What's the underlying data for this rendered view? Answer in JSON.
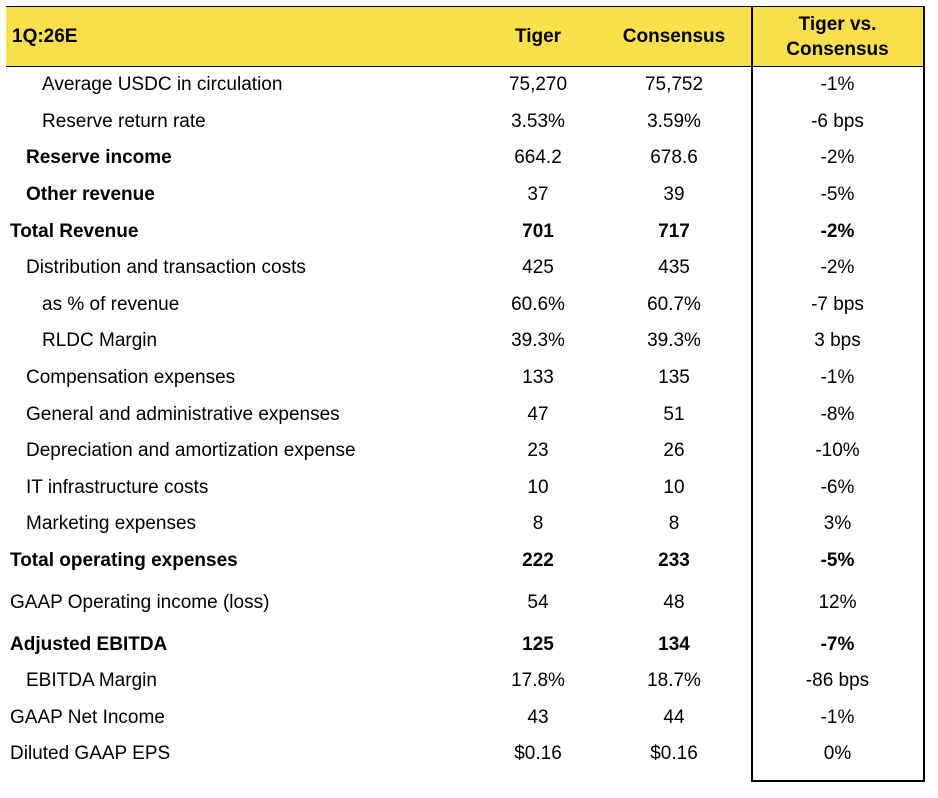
{
  "header": {
    "period": "1Q:26E",
    "col_tiger": "Tiger",
    "col_consensus": "Consensus",
    "col_diff_line1": "Tiger vs.",
    "col_diff_line2": "Consensus"
  },
  "rows": [
    {
      "label": "Average USDC in circulation",
      "tiger": "75,270",
      "consensus": "75,752",
      "diff": "-1%"
    },
    {
      "label": "Reserve return rate",
      "tiger": "3.53%",
      "consensus": "3.59%",
      "diff": "-6 bps"
    },
    {
      "label": "Reserve income",
      "tiger": "664.2",
      "consensus": "678.6",
      "diff": "-2%"
    },
    {
      "label": "Other revenue",
      "tiger": "37",
      "consensus": "39",
      "diff": "-5%"
    },
    {
      "label": "Total Revenue",
      "tiger": "701",
      "consensus": "717",
      "diff": "-2%"
    },
    {
      "label": "Distribution and transaction costs",
      "tiger": "425",
      "consensus": "435",
      "diff": "-2%"
    },
    {
      "label": "as % of revenue",
      "tiger": "60.6%",
      "consensus": "60.7%",
      "diff": "-7 bps"
    },
    {
      "label": "RLDC Margin",
      "tiger": "39.3%",
      "consensus": "39.3%",
      "diff": "3 bps"
    },
    {
      "label": "Compensation expenses",
      "tiger": "133",
      "consensus": "135",
      "diff": "-1%"
    },
    {
      "label": "General and administrative expenses",
      "tiger": "47",
      "consensus": "51",
      "diff": "-8%"
    },
    {
      "label": "Depreciation and amortization expense",
      "tiger": "23",
      "consensus": "26",
      "diff": "-10%"
    },
    {
      "label": "IT infrastructure costs",
      "tiger": "10",
      "consensus": "10",
      "diff": "-6%"
    },
    {
      "label": "Marketing expenses",
      "tiger": "8",
      "consensus": "8",
      "diff": "3%"
    },
    {
      "label": "Total operating expenses",
      "tiger": "222",
      "consensus": "233",
      "diff": "-5%"
    },
    {
      "label": "GAAP Operating income (loss)",
      "tiger": "54",
      "consensus": "48",
      "diff": "12%"
    },
    {
      "label": "Adjusted EBITDA",
      "tiger": "125",
      "consensus": "134",
      "diff": "-7%"
    },
    {
      "label": "EBITDA Margin",
      "tiger": "17.8%",
      "consensus": "18.7%",
      "diff": "-86 bps"
    },
    {
      "label": "GAAP Net Income",
      "tiger": "43",
      "consensus": "44",
      "diff": "-1%"
    },
    {
      "label": "Diluted GAAP EPS",
      "tiger": "$0.16",
      "consensus": "$0.16",
      "diff": "0%"
    }
  ]
}
